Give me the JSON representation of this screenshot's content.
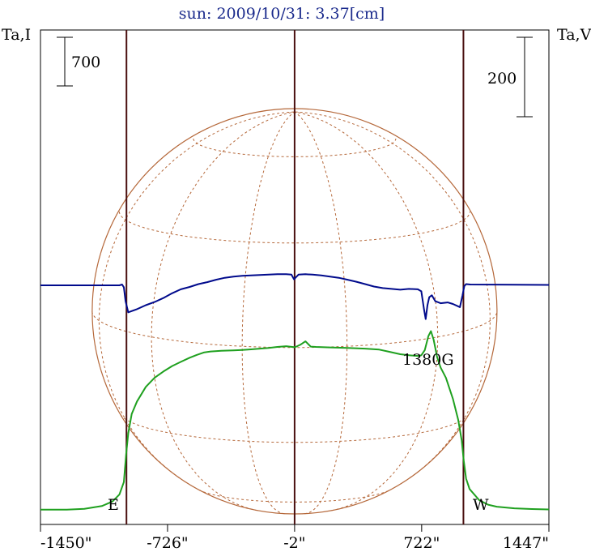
{
  "chart_data": {
    "type": "line",
    "title": "sun: 2009/10/31: 3.37[cm]",
    "left_axis_label": "Ta,I",
    "right_axis_label": "Ta,V",
    "left_scale_bar": {
      "label": "700",
      "value": 700
    },
    "right_scale_bar": {
      "label": "200",
      "value": 200
    },
    "x_ticks": [
      {
        "label": "-1450\"",
        "value": -1450
      },
      {
        "label": "-726\"",
        "value": -726
      },
      {
        "label": "-2\"",
        "value": -2
      },
      {
        "label": "722\"",
        "value": 722
      },
      {
        "label": "1447\"",
        "value": 1447
      }
    ],
    "xlim": [
      -1450,
      1447
    ],
    "vertical_markers": [
      -960,
      -2,
      960
    ],
    "limb_labels": {
      "east": "E",
      "west": "W"
    },
    "annotation": {
      "text": "1380G",
      "x": 760
    },
    "colors": {
      "intensity": "#1fa01f",
      "circular_polarization": "#000a8c",
      "solar_grid": "#b5683a",
      "markers": "#4a1010",
      "title": "#1a2a8c"
    },
    "series": [
      {
        "name": "Ta,I",
        "color": "#1fa01f",
        "points": [
          [
            -1450,
            2
          ],
          [
            -1300,
            4
          ],
          [
            -1200,
            15
          ],
          [
            -1100,
            55
          ],
          [
            -1040,
            120
          ],
          [
            -1000,
            220
          ],
          [
            -975,
            400
          ],
          [
            -962,
            800
          ],
          [
            -950,
            1100
          ],
          [
            -930,
            1380
          ],
          [
            -900,
            1560
          ],
          [
            -850,
            1770
          ],
          [
            -800,
            1900
          ],
          [
            -750,
            1990
          ],
          [
            -700,
            2070
          ],
          [
            -650,
            2130
          ],
          [
            -600,
            2190
          ],
          [
            -560,
            2230
          ],
          [
            -520,
            2265
          ],
          [
            -480,
            2280
          ],
          [
            -420,
            2290
          ],
          [
            -350,
            2296
          ],
          [
            -300,
            2302
          ],
          [
            -250,
            2310
          ],
          [
            -200,
            2320
          ],
          [
            -150,
            2330
          ],
          [
            -100,
            2345
          ],
          [
            -50,
            2355
          ],
          [
            0,
            2340
          ],
          [
            30,
            2375
          ],
          [
            60,
            2425
          ],
          [
            90,
            2350
          ],
          [
            120,
            2345
          ],
          [
            200,
            2338
          ],
          [
            300,
            2330
          ],
          [
            400,
            2320
          ],
          [
            480,
            2306
          ],
          [
            530,
            2280
          ],
          [
            600,
            2240
          ],
          [
            650,
            2225
          ],
          [
            700,
            2215
          ],
          [
            720,
            2225
          ],
          [
            740,
            2300
          ],
          [
            760,
            2500
          ],
          [
            775,
            2572
          ],
          [
            790,
            2450
          ],
          [
            810,
            2200
          ],
          [
            830,
            2050
          ],
          [
            860,
            1900
          ],
          [
            900,
            1600
          ],
          [
            930,
            1300
          ],
          [
            950,
            1000
          ],
          [
            962,
            700
          ],
          [
            975,
            450
          ],
          [
            995,
            300
          ],
          [
            1050,
            140
          ],
          [
            1100,
            75
          ],
          [
            1150,
            45
          ],
          [
            1250,
            22
          ],
          [
            1350,
            12
          ],
          [
            1447,
            6
          ]
        ]
      },
      {
        "name": "Ta,V",
        "color": "#000a8c",
        "points": [
          [
            -1450,
            0
          ],
          [
            -1000,
            0
          ],
          [
            -985,
            2
          ],
          [
            -975,
            -5
          ],
          [
            -965,
            -40
          ],
          [
            -950,
            -68
          ],
          [
            -900,
            -60
          ],
          [
            -850,
            -50
          ],
          [
            -800,
            -42
          ],
          [
            -750,
            -32
          ],
          [
            -700,
            -20
          ],
          [
            -650,
            -10
          ],
          [
            -600,
            -4
          ],
          [
            -550,
            3
          ],
          [
            -500,
            8
          ],
          [
            -450,
            14
          ],
          [
            -400,
            19
          ],
          [
            -350,
            22
          ],
          [
            -300,
            24
          ],
          [
            -250,
            25
          ],
          [
            -200,
            26
          ],
          [
            -150,
            27
          ],
          [
            -100,
            28
          ],
          [
            -50,
            28
          ],
          [
            -20,
            27
          ],
          [
            -5,
            15
          ],
          [
            5,
            20
          ],
          [
            20,
            27
          ],
          [
            60,
            28
          ],
          [
            100,
            27
          ],
          [
            150,
            25
          ],
          [
            200,
            22
          ],
          [
            250,
            19
          ],
          [
            300,
            14
          ],
          [
            350,
            9
          ],
          [
            400,
            3
          ],
          [
            450,
            -3
          ],
          [
            500,
            -7
          ],
          [
            550,
            -9
          ],
          [
            600,
            -11
          ],
          [
            650,
            -9
          ],
          [
            700,
            -10
          ],
          [
            720,
            -15
          ],
          [
            735,
            -60
          ],
          [
            745,
            -85
          ],
          [
            755,
            -50
          ],
          [
            765,
            -30
          ],
          [
            780,
            -25
          ],
          [
            800,
            -40
          ],
          [
            830,
            -45
          ],
          [
            870,
            -43
          ],
          [
            900,
            -47
          ],
          [
            940,
            -55
          ],
          [
            955,
            -25
          ],
          [
            965,
            -2
          ],
          [
            975,
            3
          ],
          [
            1000,
            2
          ],
          [
            1447,
            1
          ]
        ]
      }
    ],
    "grid": false,
    "legend": "none"
  }
}
